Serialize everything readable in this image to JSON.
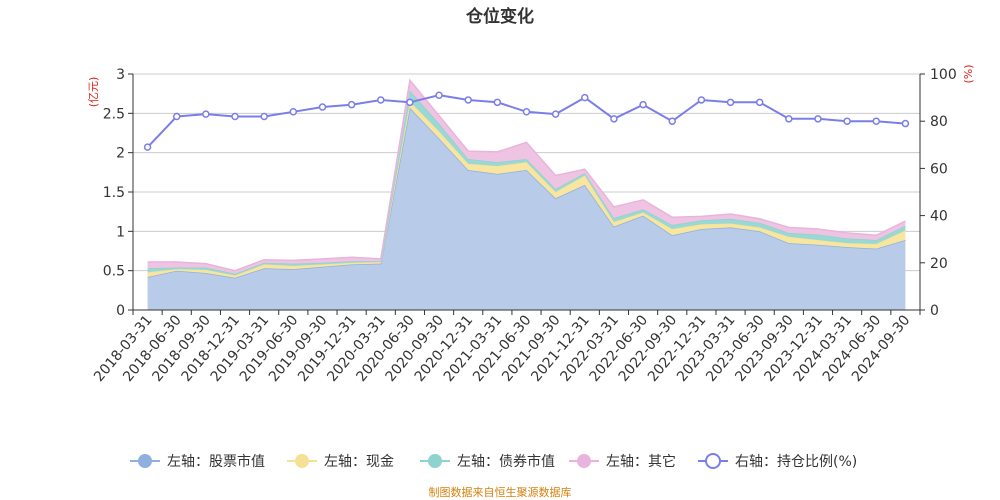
{
  "chart_data": {
    "type": "area",
    "title": "仓位变化",
    "left_axis_unit": "(亿元)",
    "right_axis_unit": "(%)",
    "left_ylim": [
      0,
      3
    ],
    "left_ticks": [
      "0",
      "0.5",
      "1",
      "1.5",
      "2",
      "2.5",
      "3"
    ],
    "right_ylim": [
      0,
      100
    ],
    "right_ticks": [
      "0",
      "20",
      "40",
      "60",
      "80",
      "100"
    ],
    "grid": true,
    "legend_position": "bottom",
    "categories": [
      "2018-03-31",
      "2018-06-30",
      "2018-09-30",
      "2018-12-31",
      "2019-03-31",
      "2019-06-30",
      "2019-09-30",
      "2019-12-31",
      "2020-03-31",
      "2020-06-30",
      "2020-09-30",
      "2020-12-31",
      "2021-03-31",
      "2021-06-30",
      "2021-09-30",
      "2021-12-31",
      "2022-03-31",
      "2022-06-30",
      "2022-09-30",
      "2022-12-31",
      "2023-03-31",
      "2023-06-30",
      "2023-09-30",
      "2023-12-31",
      "2024-03-31",
      "2024-06-30",
      "2024-09-30"
    ],
    "series": [
      {
        "name": "左轴：股票市值",
        "axis": "left",
        "color": "#b8cbe9",
        "legend_color": "#8fb0df",
        "values": [
          0.42,
          0.5,
          0.47,
          0.41,
          0.53,
          0.52,
          0.55,
          0.58,
          0.59,
          2.57,
          2.18,
          1.78,
          1.73,
          1.78,
          1.42,
          1.59,
          1.06,
          1.2,
          0.95,
          1.03,
          1.05,
          1.0,
          0.85,
          0.83,
          0.8,
          0.78,
          0.89
        ]
      },
      {
        "name": "左轴：现金",
        "axis": "left",
        "color": "#f8e6a0",
        "legend_color": "#f5e196",
        "values": [
          0.06,
          0.02,
          0.04,
          0.03,
          0.05,
          0.04,
          0.03,
          0.02,
          0.02,
          0.08,
          0.09,
          0.08,
          0.1,
          0.1,
          0.08,
          0.12,
          0.06,
          0.04,
          0.08,
          0.06,
          0.05,
          0.05,
          0.08,
          0.06,
          0.05,
          0.06,
          0.12
        ]
      },
      {
        "name": "左轴：债券市值",
        "axis": "left",
        "color": "#9ad8d5",
        "legend_color": "#8ed3cf",
        "values": [
          0.05,
          0.02,
          0.03,
          0.02,
          0.02,
          0.03,
          0.02,
          0.02,
          0.01,
          0.14,
          0.1,
          0.06,
          0.05,
          0.04,
          0.04,
          0.03,
          0.05,
          0.04,
          0.05,
          0.05,
          0.06,
          0.06,
          0.05,
          0.07,
          0.06,
          0.05,
          0.06
        ]
      },
      {
        "name": "左轴：其它",
        "axis": "left",
        "color": "#efc4e3",
        "legend_color": "#e8b4dc",
        "values": [
          0.08,
          0.07,
          0.05,
          0.04,
          0.04,
          0.04,
          0.05,
          0.05,
          0.03,
          0.13,
          0.1,
          0.1,
          0.13,
          0.21,
          0.17,
          0.05,
          0.14,
          0.12,
          0.1,
          0.05,
          0.06,
          0.05,
          0.07,
          0.07,
          0.07,
          0.06,
          0.06
        ]
      },
      {
        "name": "右轴：持仓比例(%)",
        "axis": "right",
        "color": "#7b7ee8",
        "legend_color": "#7b7ee8",
        "values": [
          69,
          82,
          83,
          82,
          82,
          84,
          86,
          87,
          89,
          88,
          91,
          89,
          88,
          84,
          83,
          90,
          81,
          87,
          80,
          89,
          88,
          88,
          81,
          81,
          80,
          80,
          79
        ]
      }
    ]
  },
  "source_note": "制图数据来自恒生聚源数据库"
}
